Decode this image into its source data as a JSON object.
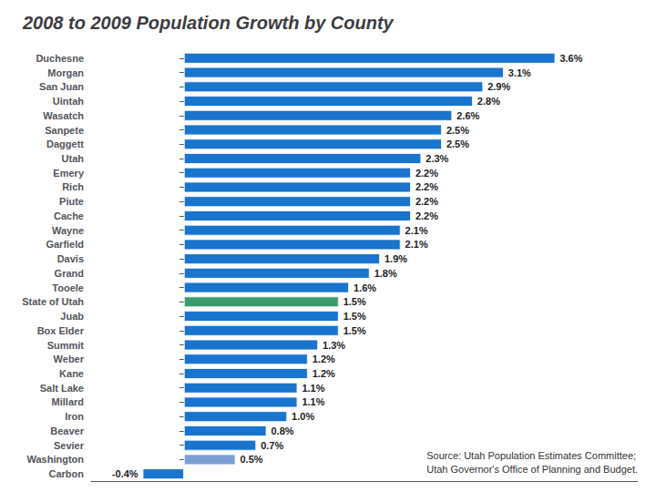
{
  "chart_data": {
    "type": "bar",
    "orientation": "horizontal",
    "title": "2008 to 2009 Population Growth by County",
    "categories": [
      "Duchesne",
      "Morgan",
      "San Juan",
      "Uintah",
      "Wasatch",
      "Sanpete",
      "Daggett",
      "Utah",
      "Emery",
      "Rich",
      "Piute",
      "Cache",
      "Wayne",
      "Garfield",
      "Davis",
      "Grand",
      "Tooele",
      "State of Utah",
      "Juab",
      "Box Elder",
      "Summit",
      "Weber",
      "Kane",
      "Salt Lake",
      "Millard",
      "Iron",
      "Beaver",
      "Sevier",
      "Washington",
      "Carbon"
    ],
    "values": [
      3.6,
      3.1,
      2.9,
      2.8,
      2.6,
      2.5,
      2.5,
      2.3,
      2.2,
      2.2,
      2.2,
      2.2,
      2.1,
      2.1,
      1.9,
      1.8,
      1.6,
      1.5,
      1.5,
      1.5,
      1.3,
      1.2,
      1.2,
      1.1,
      1.1,
      1.0,
      0.8,
      0.7,
      0.5,
      -0.4
    ],
    "value_labels": [
      "3.6%",
      "3.1%",
      "2.9%",
      "2.8%",
      "2.6%",
      "2.5%",
      "2.5%",
      "2.3%",
      "2.2%",
      "2.2%",
      "2.2%",
      "2.2%",
      "2.1%",
      "2.1%",
      "1.9%",
      "1.8%",
      "1.6%",
      "1.5%",
      "1.5%",
      "1.5%",
      "1.3%",
      "1.2%",
      "1.2%",
      "1.1%",
      "1.1%",
      "1.0%",
      "0.8%",
      "0.7%",
      "0.5%",
      "-0.4%"
    ],
    "colors": [
      "#1874CD",
      "#1874CD",
      "#1874CD",
      "#1874CD",
      "#1874CD",
      "#1874CD",
      "#1874CD",
      "#1874CD",
      "#1874CD",
      "#1874CD",
      "#1874CD",
      "#1874CD",
      "#1874CD",
      "#1874CD",
      "#1874CD",
      "#1874CD",
      "#1874CD",
      "#3A9B6F",
      "#1874CD",
      "#1874CD",
      "#1874CD",
      "#1874CD",
      "#1874CD",
      "#1874CD",
      "#1874CD",
      "#1874CD",
      "#1874CD",
      "#1874CD",
      "#7B9FD4",
      "#1874CD"
    ],
    "xlim": [
      -0.9,
      4.4
    ],
    "grid": false,
    "tick_labels": "y",
    "data_labels": true,
    "annotations": [
      "Source: Utah Population Estimates Committee;\nUtah Governor's Office of Planning and Budget."
    ]
  }
}
